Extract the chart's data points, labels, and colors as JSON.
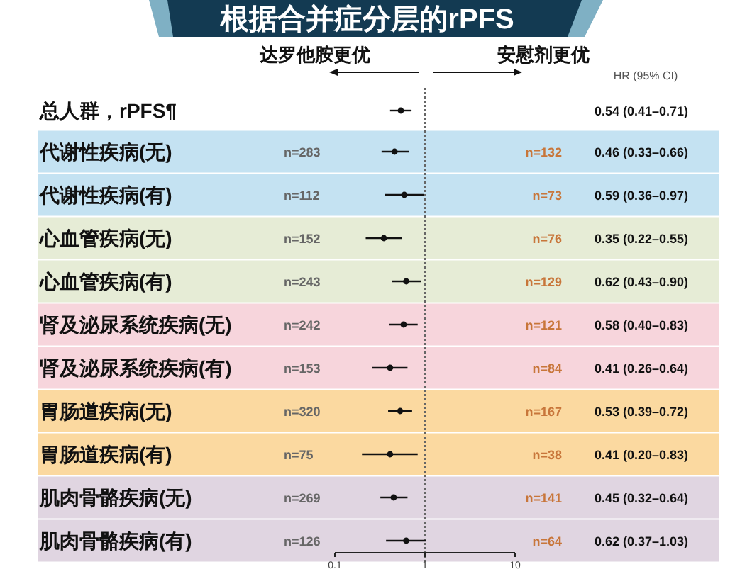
{
  "chart_data": {
    "type": "scatter",
    "orientation": "horizontal",
    "title": "根据合并症分层的rPFS",
    "categories": [
      "总人群，rPFS¶",
      "代谢性疾病(无)",
      "代谢性疾病(有)",
      "心血管疾病(无)",
      "心血管疾病(有)",
      "肾及泌尿系统疾病(无)",
      "肾及泌尿系统疾病(有)",
      "胃肠道疾病(无)",
      "胃肠道疾病(有)",
      "肌肉骨骼疾病(无)",
      "肌肉骨骼疾病(有)"
    ],
    "values": [
      0.54,
      0.46,
      0.59,
      0.35,
      0.62,
      0.58,
      0.41,
      0.53,
      0.41,
      0.45,
      0.62
    ],
    "errors": [
      [
        0.41,
        0.71
      ],
      [
        0.33,
        0.66
      ],
      [
        0.36,
        0.97
      ],
      [
        0.22,
        0.55
      ],
      [
        0.43,
        0.9
      ],
      [
        0.4,
        0.83
      ],
      [
        0.26,
        0.64
      ],
      [
        0.39,
        0.72
      ],
      [
        0.2,
        0.83
      ],
      [
        0.32,
        0.64
      ],
      [
        0.37,
        1.03
      ]
    ],
    "value_labels": [
      "0.54 (0.41–0.71)",
      "0.46 (0.33–0.66)",
      "0.59 (0.36–0.97)",
      "0.35 (0.22–0.55)",
      "0.62 (0.43–0.90)",
      "0.58 (0.40–0.83)",
      "0.41 (0.26–0.64)",
      "0.53 (0.39–0.72)",
      "0.41 (0.20–0.83)",
      "0.45 (0.32–0.64)",
      "0.62 (0.37–1.03)"
    ],
    "color": "#111111",
    "marker": "circle",
    "log": "x",
    "xlim": [
      0.1,
      10
    ],
    "xticks": [
      0.1,
      1,
      10
    ],
    "grid": false,
    "ref_lines": [
      {
        "axis": "x",
        "value": 1,
        "line_style": "dotted",
        "color": "#666666"
      }
    ],
    "annotations": [
      "达罗他胺更优",
      "安慰剂更优",
      "HR (95% CI)",
      "n=283",
      "n=132",
      "n=112",
      "n=73",
      "n=152",
      "n=76",
      "n=243",
      "n=129",
      "n=242",
      "n=121",
      "n=153",
      "n=84",
      "n=320",
      "n=167",
      "n=75",
      "n=38",
      "n=269",
      "n=141",
      "n=126",
      "n=64"
    ]
  }
}
